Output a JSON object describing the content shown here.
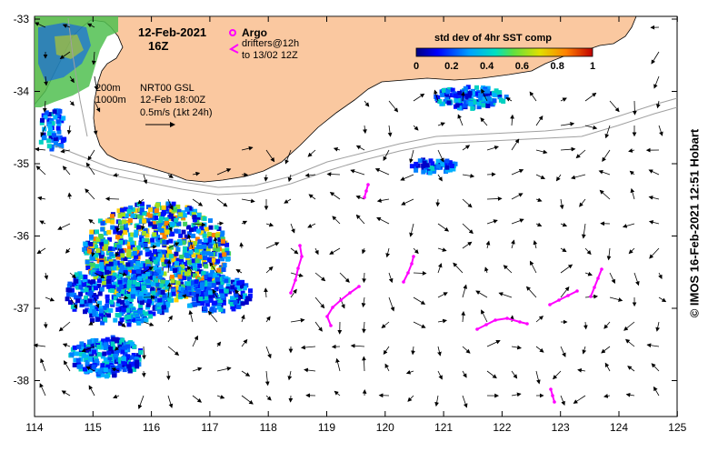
{
  "map": {
    "date_line1": "12-Feb-2021",
    "date_line2": "16Z",
    "legend_argo": "Argo",
    "legend_drifters_line1": "drifters@12h",
    "legend_drifters_line2": "to 13/02 12Z",
    "isobath_label_1": "200m",
    "isobath_label_2": "1000m",
    "product_line1": "NRT00 GSL",
    "product_line2": "12-Feb 18:00Z",
    "scale_label": "0.5m/s (1kt 24h)",
    "colorbar_title": "std dev of 4hr SST comp",
    "colorbar_ticks": [
      "0",
      "0.2",
      "0.4",
      "0.6",
      "0.8",
      "1"
    ],
    "credit": "© IMOS 16-Feb-2021 12:51 Hobart",
    "lon_ticks": [
      "114",
      "115",
      "116",
      "117",
      "118",
      "119",
      "120",
      "121",
      "122",
      "123",
      "124",
      "125"
    ],
    "lat_ticks": [
      "-33",
      "-34",
      "-35",
      "-36",
      "-37",
      "-38"
    ],
    "colors": {
      "land": "#fac8a0",
      "argo": "#ff00ff",
      "drifter": "#ff00ff",
      "isobath": "#a0a0a0",
      "arrow": "#000000"
    }
  }
}
